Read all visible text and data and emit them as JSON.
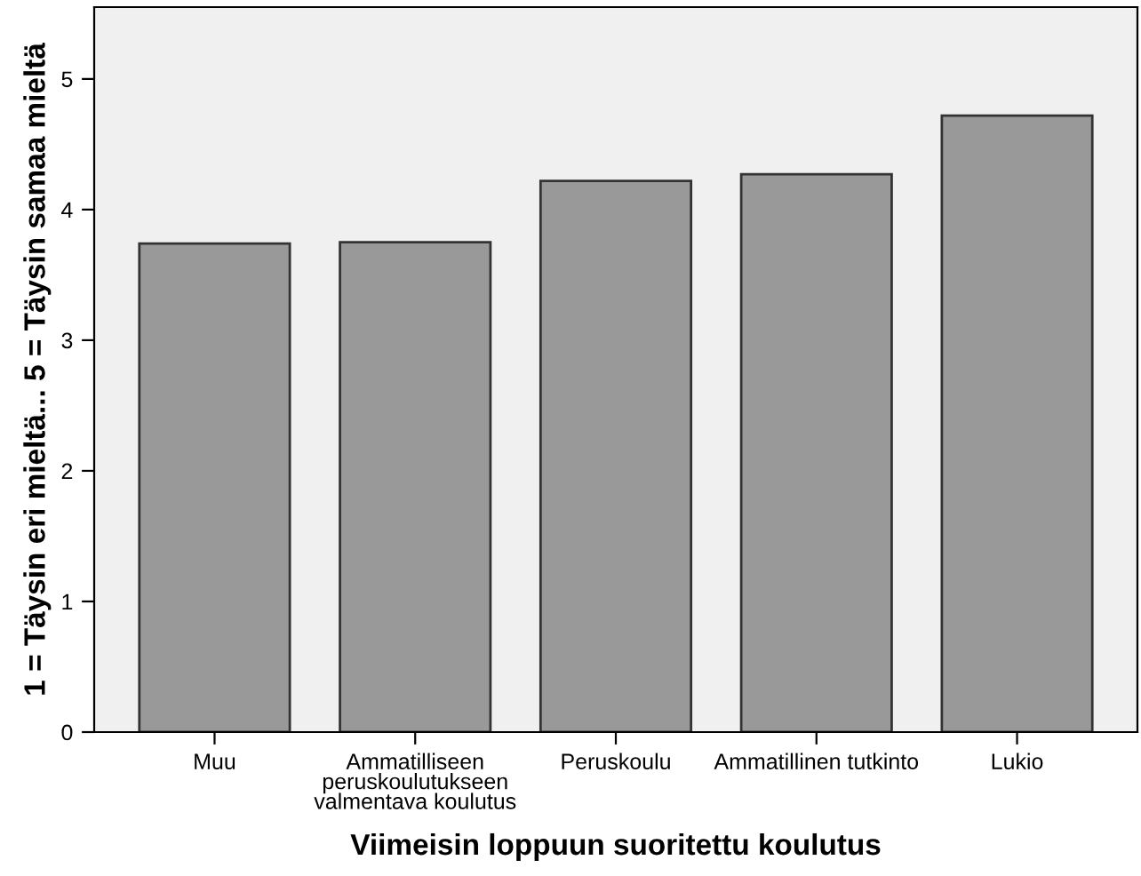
{
  "chart_data": {
    "type": "bar",
    "categories": [
      "Muu",
      "Ammatilliseen\nperuskoulutukseen\nvalmentava koulutus",
      "Peruskoulu",
      "Ammatillinen tutkinto",
      "Lukio"
    ],
    "values": [
      3.74,
      3.75,
      4.22,
      4.27,
      4.72
    ],
    "color": "#999999",
    "xlabel": "Viimeisin loppuun suoritettu koulutus",
    "ylabel": "1 = Täysin eri mieltä... 5 = Täysin samaa mieltä",
    "ylim": [
      0,
      5.55
    ],
    "yticks": [
      0,
      1,
      2,
      3,
      4,
      5
    ],
    "grid": false
  }
}
